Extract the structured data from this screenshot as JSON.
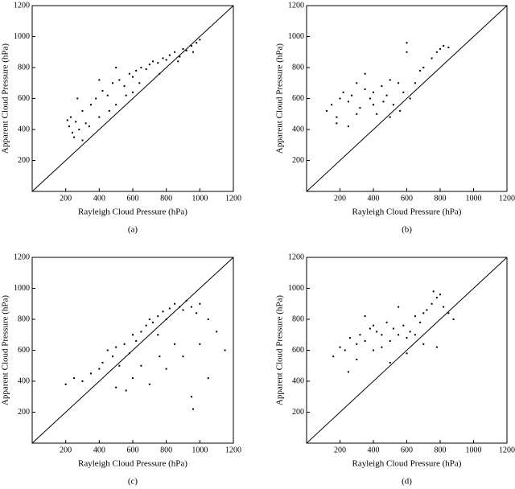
{
  "chart_data": [
    {
      "type": "scatter",
      "caption": "(a)",
      "x_label": "Rayleigh Cloud Pressure (hPa)",
      "y_label": "Apparent Cloud Pressure (hPa)",
      "color": "#000000",
      "xlim": [
        0,
        1200
      ],
      "ylim": [
        0,
        1200
      ],
      "xticks": [
        200,
        400,
        600,
        800,
        1000,
        1200
      ],
      "yticks": [
        200,
        400,
        600,
        800,
        1000,
        1200
      ],
      "x": [
        220,
        240,
        260,
        280,
        230,
        250,
        300,
        320,
        350,
        380,
        400,
        420,
        450,
        480,
        500,
        520,
        550,
        580,
        600,
        620,
        650,
        680,
        700,
        720,
        750,
        780,
        800,
        820,
        850,
        880,
        900,
        920,
        950,
        980,
        1000,
        210,
        270,
        340,
        460,
        560,
        640,
        760,
        870,
        960,
        300,
        400,
        500,
        600
      ],
      "values": [
        420,
        380,
        450,
        400,
        480,
        350,
        520,
        440,
        560,
        600,
        480,
        650,
        620,
        700,
        560,
        720,
        680,
        760,
        740,
        780,
        800,
        790,
        820,
        840,
        830,
        860,
        850,
        880,
        900,
        870,
        920,
        910,
        940,
        960,
        980,
        460,
        600,
        420,
        520,
        620,
        700,
        760,
        840,
        900,
        330,
        720,
        800,
        640
      ]
    },
    {
      "type": "scatter",
      "caption": "(b)",
      "x_label": "Rayleigh Cloud Pressure (hPa)",
      "y_label": "Apparent Cloud Pressure (hPa)",
      "color": "#000000",
      "xlim": [
        0,
        1200
      ],
      "ylim": [
        0,
        1200
      ],
      "xticks": [
        200,
        400,
        600,
        800,
        1000,
        1200
      ],
      "yticks": [
        200,
        400,
        600,
        800,
        1000,
        1200
      ],
      "x": [
        120,
        150,
        180,
        200,
        220,
        250,
        270,
        300,
        320,
        350,
        380,
        400,
        420,
        450,
        480,
        500,
        520,
        550,
        580,
        600,
        620,
        650,
        680,
        700,
        750,
        780,
        800,
        820,
        850,
        250,
        300,
        400,
        500,
        560,
        600,
        180,
        350,
        460
      ],
      "values": [
        520,
        560,
        480,
        600,
        640,
        580,
        620,
        700,
        540,
        660,
        600,
        640,
        500,
        680,
        620,
        720,
        560,
        700,
        640,
        960,
        600,
        700,
        780,
        800,
        860,
        900,
        920,
        940,
        930,
        420,
        500,
        560,
        480,
        520,
        900,
        440,
        760,
        580
      ]
    },
    {
      "type": "scatter",
      "caption": "(c)",
      "x_label": "Rayleigh Cloud Pressure (hPa)",
      "y_label": "Apparent Cloud Pressure (hPa)",
      "color": "#000000",
      "xlim": [
        0,
        1200
      ],
      "ylim": [
        0,
        1200
      ],
      "xticks": [
        200,
        400,
        600,
        800,
        1000,
        1200
      ],
      "yticks": [
        200,
        400,
        600,
        800,
        1000,
        1200
      ],
      "x": [
        200,
        250,
        300,
        350,
        400,
        420,
        450,
        480,
        500,
        520,
        550,
        580,
        600,
        620,
        650,
        680,
        700,
        720,
        750,
        780,
        800,
        820,
        850,
        880,
        900,
        920,
        950,
        980,
        1000,
        1050,
        1100,
        1150,
        600,
        700,
        800,
        900,
        1000,
        500,
        650,
        750,
        850,
        950,
        1050,
        560,
        760,
        960
      ],
      "values": [
        380,
        420,
        400,
        450,
        480,
        520,
        600,
        560,
        620,
        500,
        640,
        580,
        700,
        660,
        720,
        760,
        800,
        780,
        820,
        850,
        800,
        870,
        900,
        880,
        860,
        920,
        880,
        840,
        900,
        800,
        720,
        600,
        420,
        380,
        480,
        560,
        640,
        360,
        500,
        700,
        640,
        300,
        420,
        340,
        560,
        220
      ]
    },
    {
      "type": "scatter",
      "caption": "(d)",
      "x_label": "Rayleigh Cloud Pressure (hPa)",
      "y_label": "Apparent Cloud Pressure (hPa)",
      "color": "#000000",
      "xlim": [
        0,
        1200
      ],
      "ylim": [
        0,
        1200
      ],
      "xticks": [
        200,
        400,
        600,
        800,
        1000,
        1200
      ],
      "yticks": [
        200,
        400,
        600,
        800,
        1000,
        1200
      ],
      "x": [
        160,
        200,
        230,
        260,
        300,
        320,
        350,
        380,
        400,
        420,
        450,
        480,
        500,
        520,
        550,
        580,
        600,
        620,
        650,
        680,
        700,
        720,
        750,
        780,
        800,
        820,
        850,
        880,
        300,
        400,
        500,
        600,
        700,
        760,
        250,
        350,
        450,
        550,
        650,
        780
      ],
      "values": [
        560,
        620,
        600,
        680,
        640,
        700,
        660,
        740,
        760,
        720,
        700,
        780,
        660,
        740,
        700,
        760,
        680,
        720,
        820,
        780,
        840,
        860,
        900,
        940,
        960,
        880,
        840,
        800,
        540,
        600,
        520,
        580,
        640,
        980,
        460,
        820,
        620,
        880,
        700,
        620
      ]
    }
  ]
}
